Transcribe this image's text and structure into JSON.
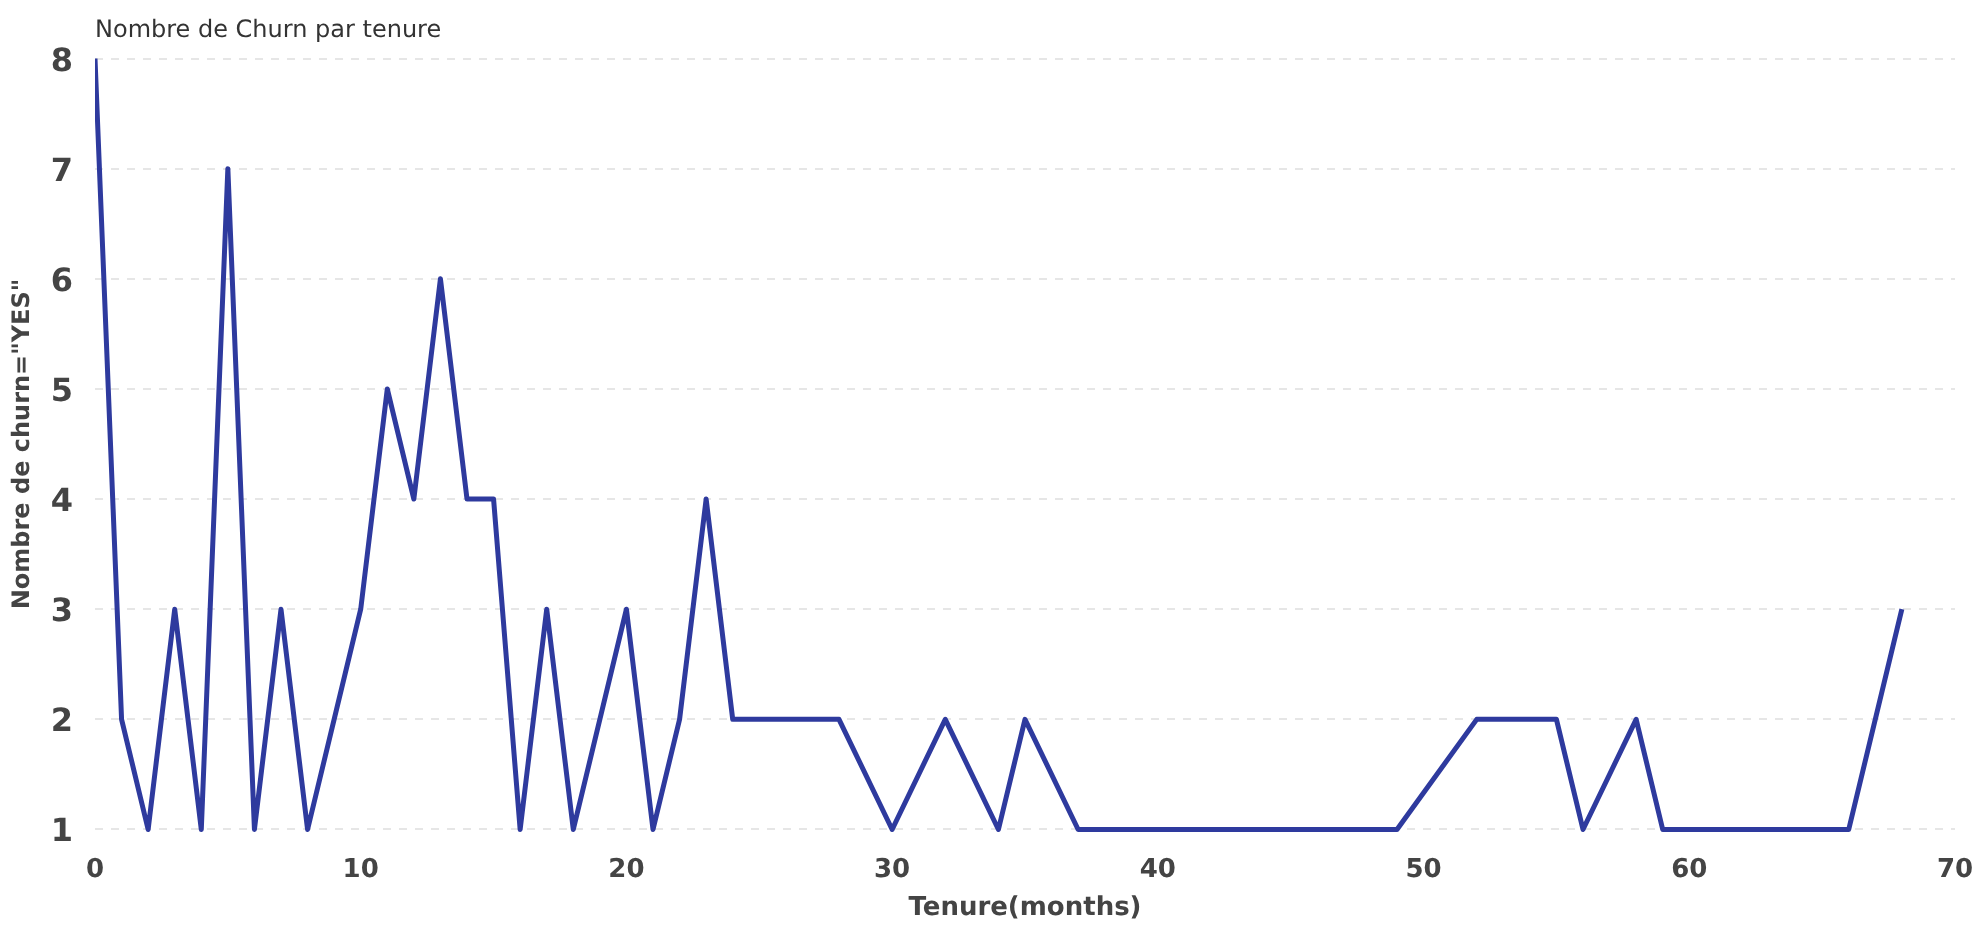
{
  "chart_data": {
    "type": "line",
    "title": "Nombre de Churn par tenure",
    "xlabel": "Tenure(months)",
    "ylabel": "Nombre de churn=\"YES\"",
    "x": [
      0,
      1,
      2,
      3,
      4,
      5,
      6,
      7,
      8,
      10,
      11,
      12,
      13,
      14,
      15,
      16,
      17,
      18,
      20,
      21,
      22,
      23,
      24,
      28,
      30,
      32,
      34,
      35,
      37,
      49,
      52,
      55,
      56,
      58,
      59,
      66,
      68
    ],
    "series": [
      {
        "color": "#2e3a9e",
        "values": [
          8,
          2,
          1,
          3,
          1,
          7,
          1,
          3,
          1,
          3,
          5,
          4,
          6,
          4,
          4,
          1,
          3,
          1,
          3,
          1,
          2,
          4,
          2,
          2,
          1,
          2,
          1,
          2,
          1,
          1,
          2,
          2,
          1,
          2,
          1,
          1,
          3
        ]
      }
    ],
    "xlim": [
      0,
      70
    ],
    "ylim": [
      1,
      8
    ],
    "xticks": [
      0,
      10,
      20,
      30,
      40,
      50,
      60,
      70
    ],
    "yticks": [
      1,
      2,
      3,
      4,
      5,
      6,
      7,
      8
    ],
    "grid": "y",
    "marker": "none",
    "line_style": "solid"
  }
}
